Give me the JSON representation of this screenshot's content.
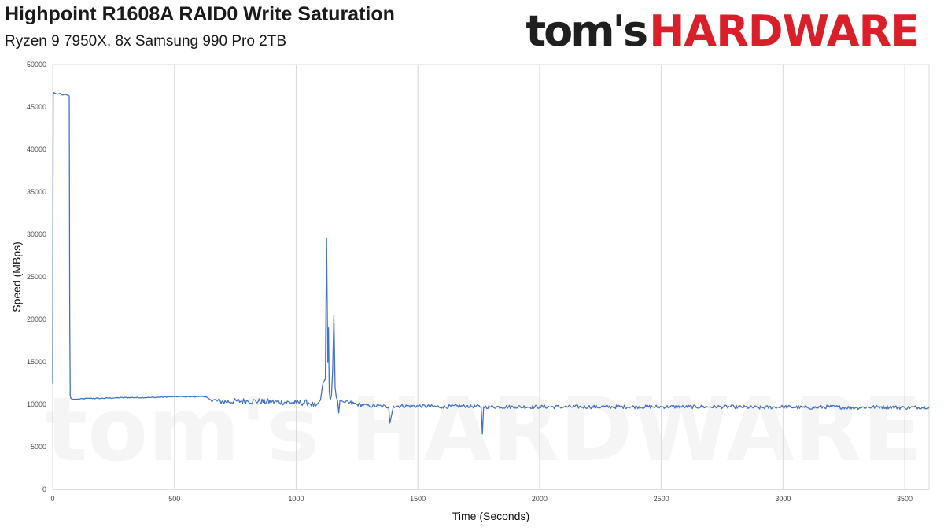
{
  "header": {
    "title": "Highpoint R1608A RAID0 Write Saturation",
    "subtitle": "Ryzen 9 7950X, 8x Samsung 990 Pro 2TB"
  },
  "logo": {
    "part1": "tom's",
    "part2": "HARDWARE"
  },
  "chart_data": {
    "type": "line",
    "title": "Highpoint R1608A RAID0 Write Saturation",
    "subtitle": "Ryzen 9 7950X, 8x Samsung 990 Pro 2TB",
    "xlabel": "Time (Seconds)",
    "ylabel": "Speed (MBps)",
    "xlim": [
      0,
      3600
    ],
    "ylim": [
      0,
      50000
    ],
    "xticks": [
      0,
      500,
      1000,
      1500,
      2000,
      2500,
      3000,
      3500
    ],
    "yticks": [
      0,
      5000,
      10000,
      15000,
      20000,
      25000,
      30000,
      35000,
      40000,
      45000,
      50000
    ],
    "grid": "vertical",
    "legend": "none",
    "color": "#4472c4",
    "series": [
      {
        "x": [
          0,
          2,
          5,
          10,
          20,
          30,
          40,
          50,
          60,
          68,
          70,
          72,
          75,
          80,
          100,
          150,
          200,
          300,
          400,
          500,
          600,
          630,
          650,
          700,
          800,
          900,
          1000,
          1050,
          1080,
          1100,
          1110,
          1120,
          1125,
          1130,
          1133,
          1136,
          1140,
          1145,
          1150,
          1155,
          1160,
          1165,
          1170,
          1175,
          1180,
          1200,
          1250,
          1300,
          1350,
          1380,
          1385,
          1400,
          1500,
          1600,
          1700,
          1760,
          1765,
          1770,
          1800,
          1900,
          2000,
          2100,
          2200,
          2300,
          2400,
          2500,
          2600,
          2700,
          2800,
          2900,
          3000,
          3100,
          3200,
          3300,
          3400,
          3500,
          3600
        ],
        "y": [
          12500,
          46500,
          46700,
          46600,
          46500,
          46600,
          46400,
          46500,
          46400,
          46300,
          20000,
          11000,
          10700,
          10600,
          10600,
          10700,
          10700,
          10800,
          10800,
          10900,
          10900,
          10900,
          10500,
          10300,
          10400,
          10300,
          10200,
          10200,
          9800,
          10500,
          12500,
          13000,
          29500,
          15000,
          19000,
          11500,
          10500,
          11000,
          14000,
          20500,
          12000,
          10800,
          10500,
          9000,
          10500,
          10200,
          10000,
          9800,
          9800,
          9700,
          7800,
          9800,
          9800,
          9700,
          9800,
          9700,
          6500,
          9700,
          9700,
          9700,
          9700,
          9700,
          9700,
          9700,
          9700,
          9700,
          9700,
          9700,
          9700,
          9600,
          9700,
          9600,
          9700,
          9600,
          9700,
          9600,
          9700
        ]
      }
    ]
  }
}
